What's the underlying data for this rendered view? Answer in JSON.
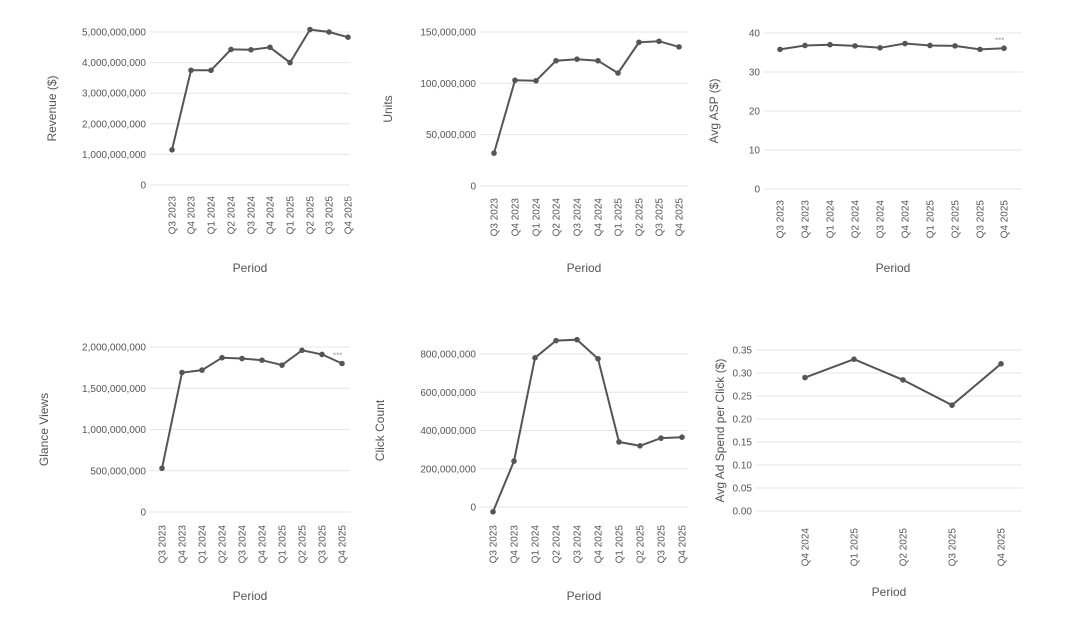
{
  "colors": {
    "line": "#555555",
    "grid": "#e6e6e6",
    "text": "#555555",
    "background": "#ffffff"
  },
  "chart_data": [
    {
      "type": "line",
      "xlabel": "Period",
      "ylabel": "Revenue ($)",
      "ylim": [
        0,
        5000000000
      ],
      "y_ticks": [
        0,
        1000000000,
        2000000000,
        3000000000,
        4000000000,
        5000000000
      ],
      "y_tick_labels": [
        "0",
        "1,000,000,000",
        "2,000,000,000",
        "3,000,000,000",
        "4,000,000,000",
        "5,000,000,000"
      ],
      "categories": [
        "Q3 2023",
        "Q4 2023",
        "Q1 2024",
        "Q2 2024",
        "Q3 2024",
        "Q4 2024",
        "Q1 2025",
        "Q2 2025",
        "Q3 2025",
        "Q4 2025"
      ],
      "values": [
        1150000000,
        3750000000,
        3750000000,
        4430000000,
        4420000000,
        4500000000,
        4000000000,
        5080000000,
        5000000000,
        4830000000
      ],
      "grid": true
    },
    {
      "type": "line",
      "xlabel": "Period",
      "ylabel": "Units",
      "ylim": [
        0,
        150000000
      ],
      "y_ticks": [
        0,
        50000000,
        100000000,
        150000000
      ],
      "y_tick_labels": [
        "0",
        "50,000,000",
        "100,000,000",
        "150,000,000"
      ],
      "categories": [
        "Q3 2023",
        "Q4 2023",
        "Q1 2024",
        "Q2 2024",
        "Q3 2024",
        "Q4 2024",
        "Q1 2025",
        "Q2 2025",
        "Q3 2025",
        "Q4 2025"
      ],
      "values": [
        32000000,
        103000000,
        102500000,
        122000000,
        123500000,
        122000000,
        110000000,
        140000000,
        141000000,
        135500000
      ],
      "grid": true
    },
    {
      "type": "line",
      "xlabel": "Period",
      "ylabel": "Avg ASP ($)",
      "ylim": [
        0,
        40
      ],
      "y_ticks": [
        0,
        10,
        20,
        30,
        40
      ],
      "y_tick_labels": [
        "0",
        "10",
        "20",
        "30",
        "40"
      ],
      "categories": [
        "Q3 2023",
        "Q4 2023",
        "Q1 2024",
        "Q2 2024",
        "Q3 2024",
        "Q4 2024",
        "Q1 2025",
        "Q2 2025",
        "Q3 2025",
        "Q4 2025"
      ],
      "values": [
        35.8,
        36.8,
        37.0,
        36.7,
        36.2,
        37.3,
        36.8,
        36.7,
        35.8,
        36.1
      ],
      "grid": true
    },
    {
      "type": "line",
      "xlabel": "Period",
      "ylabel": "Glance Views",
      "ylim": [
        0,
        2000000000
      ],
      "y_ticks": [
        0,
        500000000,
        1000000000,
        1500000000,
        2000000000
      ],
      "y_tick_labels": [
        "0",
        "500,000,000",
        "1,000,000,000",
        "1,500,000,000",
        "2,000,000,000"
      ],
      "categories": [
        "Q3 2023",
        "Q4 2023",
        "Q1 2024",
        "Q2 2024",
        "Q3 2024",
        "Q4 2024",
        "Q1 2025",
        "Q2 2025",
        "Q3 2025",
        "Q4 2025"
      ],
      "values": [
        530000000,
        1690000000,
        1720000000,
        1870000000,
        1860000000,
        1840000000,
        1780000000,
        1960000000,
        1910000000,
        1800000000
      ],
      "grid": true
    },
    {
      "type": "line",
      "xlabel": "Period",
      "ylabel": "Click Count",
      "ylim": [
        0,
        800000000
      ],
      "y_ticks": [
        0,
        200000000,
        400000000,
        600000000,
        800000000
      ],
      "y_tick_labels": [
        "0",
        "200,000,000",
        "400,000,000",
        "600,000,000",
        "800,000,000"
      ],
      "categories": [
        "Q3 2023",
        "Q4 2023",
        "Q1 2024",
        "Q2 2024",
        "Q3 2024",
        "Q4 2024",
        "Q1 2025",
        "Q2 2025",
        "Q3 2025",
        "Q4 2025"
      ],
      "values": [
        -25000000,
        240000000,
        780000000,
        870000000,
        875000000,
        775000000,
        340000000,
        320000000,
        360000000,
        365000000
      ],
      "grid": true
    },
    {
      "type": "line",
      "xlabel": "Period",
      "ylabel": "Avg Ad Spend per Click ($)",
      "ylim": [
        0,
        0.35
      ],
      "y_ticks": [
        0,
        0.05,
        0.1,
        0.15,
        0.2,
        0.25,
        0.3,
        0.35
      ],
      "y_tick_labels": [
        "0.00",
        "0.05",
        "0.10",
        "0.15",
        "0.20",
        "0.25",
        "0.30",
        "0.35"
      ],
      "categories": [
        "Q4 2024",
        "Q1 2025",
        "Q2 2025",
        "Q3 2025",
        "Q4 2025"
      ],
      "values": [
        0.29,
        0.33,
        0.285,
        0.23,
        0.32
      ],
      "grid": true
    }
  ]
}
